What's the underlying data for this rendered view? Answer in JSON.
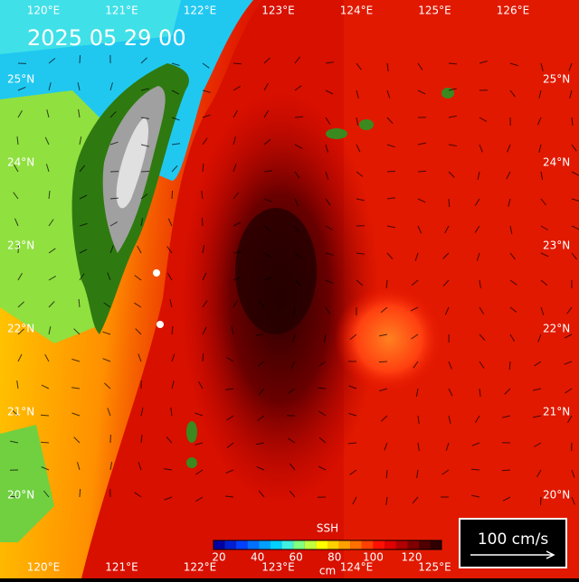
{
  "map": {
    "timestamp": "2025 05 29 00",
    "longitude_labels": [
      "120°E",
      "121°E",
      "122°E",
      "123°E",
      "124°E",
      "125°E",
      "126°E"
    ],
    "latitude_labels": [
      "25°N",
      "24°N",
      "23°N",
      "22°N",
      "21°N",
      "20°N"
    ],
    "colorbar": {
      "title": "SSH",
      "ticks": [
        20,
        40,
        60,
        80,
        100,
        120
      ],
      "unit": "cm"
    },
    "scale_label": "100 cm/s"
  }
}
